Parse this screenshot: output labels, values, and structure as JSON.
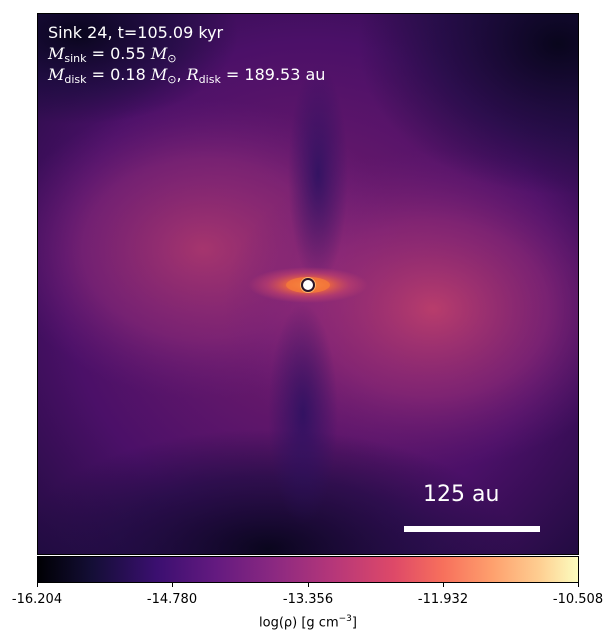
{
  "panel": {
    "title_line": "Sink 24, t=105.09 kyr",
    "mass_symbol": "M",
    "mass_sub": "sink",
    "mass_value": "= 0.55",
    "mass_unit": "M",
    "mass_unit_sub": "⊙",
    "disk_mass_sub": "disk",
    "disk_mass_value": "= 0.18",
    "radius_symbol": "R",
    "radius_sub": "disk",
    "radius_value": "= 189.53 au",
    "scale_bar_label": "125 au"
  },
  "colorbar": {
    "ticks": [
      "-16.204",
      "-14.780",
      "-13.356",
      "-11.932",
      "-10.508"
    ],
    "label_main": "log(ρ) [g cm",
    "label_exp": "−3",
    "label_end": "]",
    "colormap": "inferno"
  }
}
